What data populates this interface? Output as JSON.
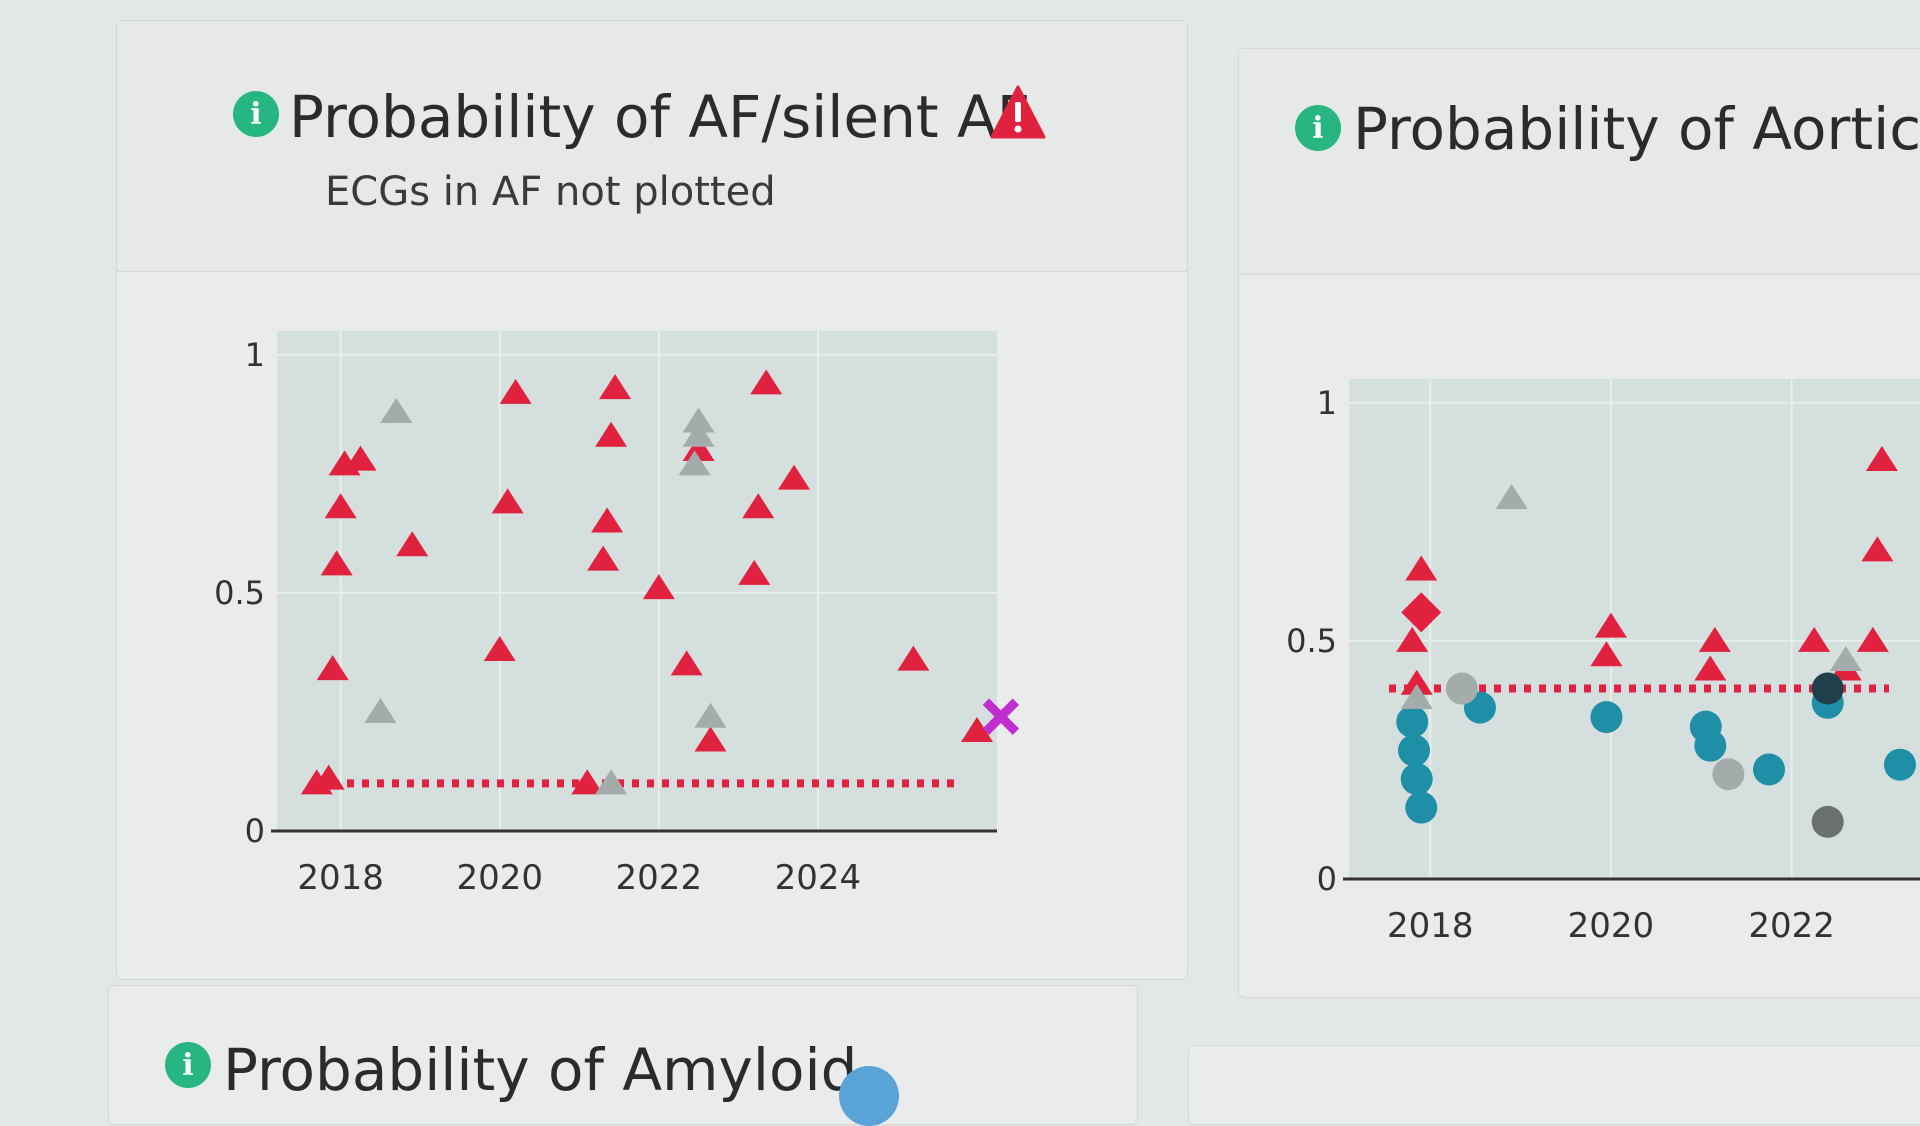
{
  "cards": {
    "af": {
      "title": "Probability of AF/silent AF",
      "subtitle": "ECGs in AF not plotted",
      "icon": "info-icon",
      "alert_icon": "warning-triangle-icon",
      "alert_color": "#e0223f"
    },
    "aortic": {
      "title": "Probability of Aortic",
      "icon": "info-icon"
    },
    "bottom_left": {
      "title": "Probability of Amyloid",
      "icon": "info-icon"
    }
  },
  "colors": {
    "info": "#27b582",
    "red": "#e0223f",
    "gray": "#a4acab",
    "teal": "#1f8fa8",
    "magenta": "#c02ed0",
    "plot_bg": "#d5dfdd"
  },
  "chart_data": [
    {
      "type": "scatter",
      "title": "Probability of AF/silent AF",
      "subtitle": "ECGs in AF not plotted",
      "x_ticks": [
        "2018",
        "2020",
        "2022",
        "2024"
      ],
      "y_ticks": [
        "0",
        "0.5",
        "1"
      ],
      "xlim": [
        2017.2,
        2026.0
      ],
      "ylim": [
        0,
        1.05
      ],
      "grid": true,
      "series": [
        {
          "marker": "triangle",
          "color": "#e0223f",
          "points": [
            [
              2017.7,
              0.1
            ],
            [
              2017.85,
              0.11
            ],
            [
              2017.9,
              0.34
            ],
            [
              2017.95,
              0.56
            ],
            [
              2018.0,
              0.68
            ],
            [
              2018.05,
              0.77
            ],
            [
              2018.25,
              0.78
            ],
            [
              2018.9,
              0.6
            ],
            [
              2020.0,
              0.38
            ],
            [
              2020.1,
              0.69
            ],
            [
              2020.2,
              0.92
            ],
            [
              2021.1,
              0.1
            ],
            [
              2021.3,
              0.57
            ],
            [
              2021.35,
              0.65
            ],
            [
              2021.4,
              0.83
            ],
            [
              2021.45,
              0.93
            ],
            [
              2022.0,
              0.51
            ],
            [
              2022.35,
              0.35
            ],
            [
              2022.5,
              0.8
            ],
            [
              2022.65,
              0.19
            ],
            [
              2023.2,
              0.54
            ],
            [
              2023.25,
              0.68
            ],
            [
              2023.35,
              0.94
            ],
            [
              2023.7,
              0.74
            ],
            [
              2025.2,
              0.36
            ],
            [
              2026.0,
              0.21
            ]
          ]
        },
        {
          "marker": "triangle",
          "color": "#a4acab",
          "points": [
            [
              2018.5,
              0.25
            ],
            [
              2018.7,
              0.88
            ],
            [
              2021.4,
              0.1
            ],
            [
              2022.45,
              0.77
            ],
            [
              2022.5,
              0.86
            ],
            [
              2022.5,
              0.83
            ],
            [
              2022.65,
              0.24
            ]
          ]
        },
        {
          "marker": "x",
          "color": "#c02ed0",
          "points": [
            [
              2026.3,
              0.24
            ]
          ]
        }
      ],
      "threshold": {
        "value": 0.1,
        "style": "dotted",
        "color": "#e0223f"
      }
    },
    {
      "type": "scatter",
      "title": "Probability of Aortic",
      "x_ticks": [
        "2018",
        "2020",
        "2022"
      ],
      "y_ticks": [
        "0",
        "0.5",
        "1"
      ],
      "xlim": [
        2017.1,
        2023.3
      ],
      "ylim": [
        0,
        1.05
      ],
      "grid": true,
      "series": [
        {
          "marker": "triangle",
          "color": "#e0223f",
          "points": [
            [
              2017.8,
              0.5
            ],
            [
              2017.85,
              0.41
            ],
            [
              2017.9,
              0.65
            ],
            [
              2019.95,
              0.47
            ],
            [
              2020.0,
              0.53
            ],
            [
              2021.1,
              0.44
            ],
            [
              2021.15,
              0.5
            ],
            [
              2022.25,
              0.5
            ],
            [
              2022.6,
              0.44
            ],
            [
              2022.9,
              0.5
            ],
            [
              2022.95,
              0.69
            ],
            [
              2023.0,
              0.88
            ]
          ]
        },
        {
          "marker": "diamond",
          "color": "#e0223f",
          "points": [
            [
              2017.9,
              0.56
            ]
          ]
        },
        {
          "marker": "circle",
          "color": "#1f8fa8",
          "points": [
            [
              2017.8,
              0.33
            ],
            [
              2017.82,
              0.27
            ],
            [
              2017.85,
              0.21
            ],
            [
              2017.9,
              0.15
            ],
            [
              2018.55,
              0.36
            ],
            [
              2019.95,
              0.34
            ],
            [
              2021.05,
              0.32
            ],
            [
              2021.1,
              0.28
            ],
            [
              2021.75,
              0.23
            ],
            [
              2022.4,
              0.37
            ],
            [
              2023.2,
              0.24
            ]
          ]
        },
        {
          "marker": "circle",
          "color": "#a4acab",
          "points": [
            [
              2018.35,
              0.4
            ],
            [
              2021.3,
              0.22
            ]
          ]
        },
        {
          "marker": "circle",
          "color": "#1f3f4a",
          "points": [
            [
              2022.4,
              0.4
            ]
          ]
        },
        {
          "marker": "circle",
          "color": "#6b6f70",
          "points": [
            [
              2022.4,
              0.12
            ]
          ]
        },
        {
          "marker": "triangle",
          "color": "#a4acab",
          "points": [
            [
              2018.9,
              0.8
            ],
            [
              2022.6,
              0.46
            ],
            [
              2017.85,
              0.38
            ]
          ]
        }
      ],
      "threshold": {
        "value": 0.4,
        "style": "dotted",
        "color": "#e0223f"
      }
    }
  ]
}
